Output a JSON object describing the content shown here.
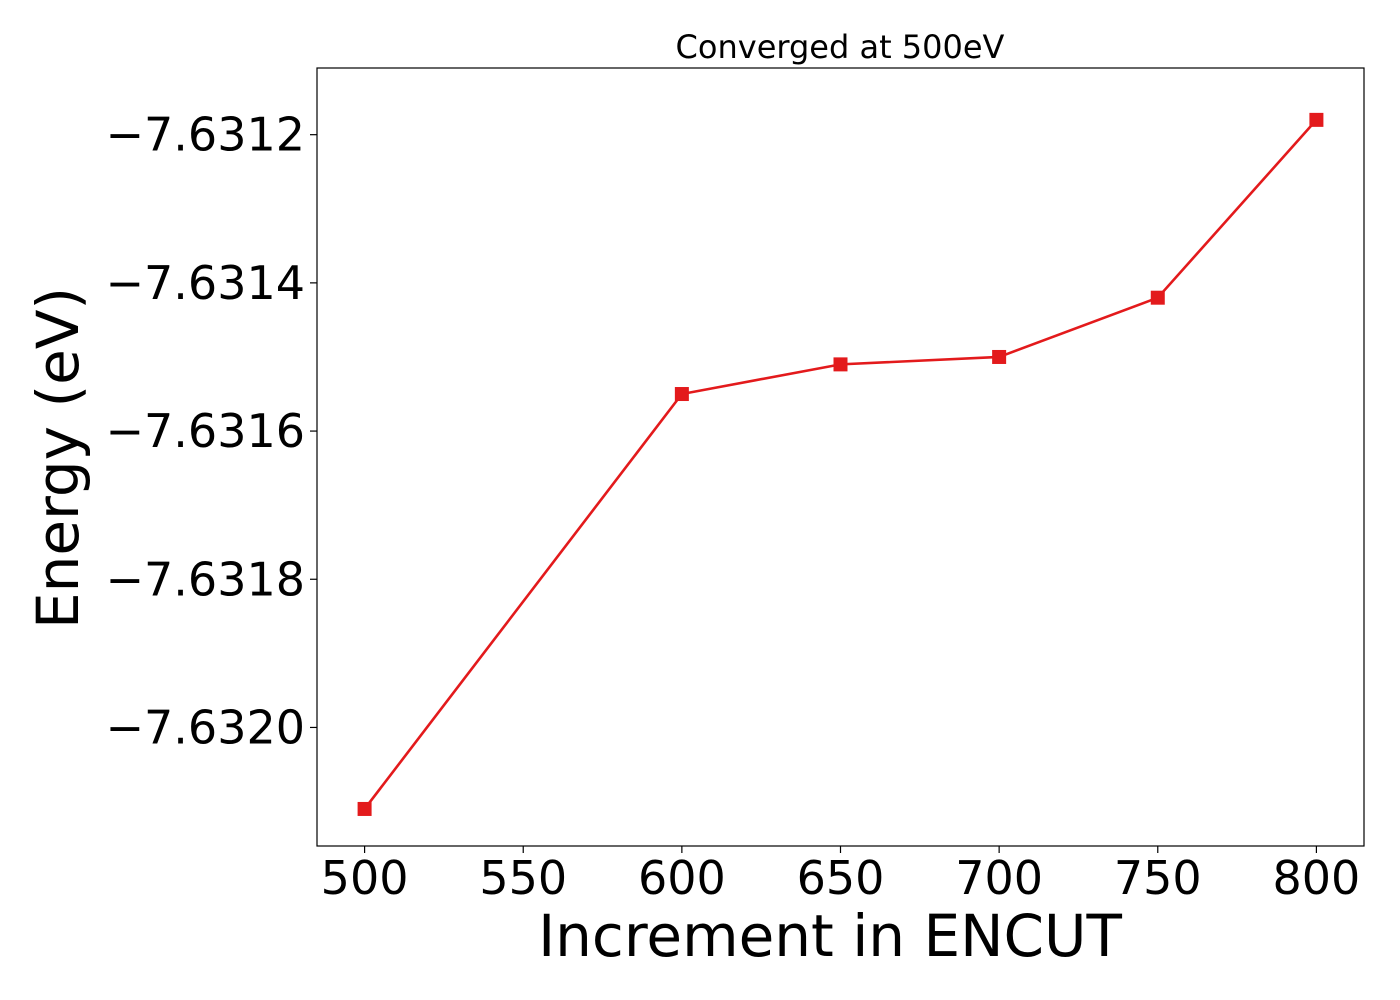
{
  "chart_data": {
    "type": "line",
    "title": "Converged at 500eV",
    "xlabel": "Increment in ENCUT",
    "ylabel": "Energy (eV)",
    "x": [
      500,
      600,
      650,
      700,
      750,
      800
    ],
    "xticks": [
      500,
      550,
      600,
      650,
      700,
      750,
      800
    ],
    "xtick_labels": [
      "500",
      "550",
      "600",
      "650",
      "700",
      "750",
      "800"
    ],
    "yticks": [
      -7.6312,
      -7.6314,
      -7.6316,
      -7.6318,
      -7.632
    ],
    "ytick_labels": [
      "−7.6312",
      "−7.6314",
      "−7.6316",
      "−7.6318",
      "−7.6320"
    ],
    "xlim": [
      485,
      815
    ],
    "ylim": [
      -7.63216,
      -7.63111
    ],
    "grid": false,
    "series": [
      {
        "values": [
          -7.63211,
          -7.63155,
          -7.63151,
          -7.6315,
          -7.63142,
          -7.63118
        ],
        "color": "#e31a1c",
        "marker": "square"
      }
    ]
  }
}
